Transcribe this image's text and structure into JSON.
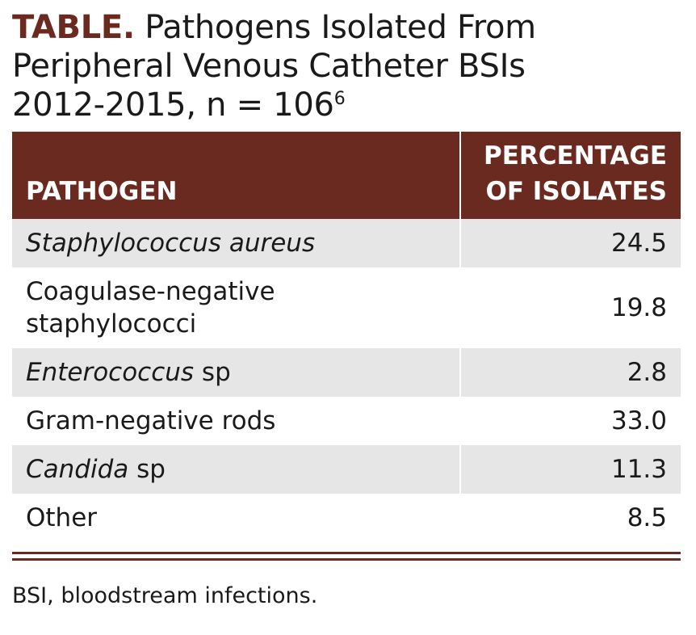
{
  "title": {
    "label": "TABLE.",
    "lines": [
      "Pathogens Isolated From",
      "Peripheral Venous Catheter BSIs",
      "2012-2015, n = 106"
    ],
    "ref": "6"
  },
  "table": {
    "header": [
      "PATHOGEN",
      "PERCENTAGE OF ISOLATES"
    ],
    "rows": [
      [
        [
          {
            "text": "Staphylococcus aureus",
            "italic": true
          }
        ],
        "24.5"
      ],
      [
        [
          {
            "text": "Coagulase-negative staphylococci",
            "italic": false
          }
        ],
        "19.8"
      ],
      [
        [
          {
            "text": "Enterococcus",
            "italic": true
          },
          {
            "text": " sp",
            "italic": false
          }
        ],
        "2.8"
      ],
      [
        [
          {
            "text": "Gram-negative rods",
            "italic": false
          }
        ],
        "33.0"
      ],
      [
        [
          {
            "text": "Candida",
            "italic": true
          },
          {
            "text": " sp",
            "italic": false
          }
        ],
        "11.3"
      ],
      [
        [
          {
            "text": "Other",
            "italic": false
          }
        ],
        "8.5"
      ]
    ]
  },
  "footnote": "BSI, bloodstream infections."
}
